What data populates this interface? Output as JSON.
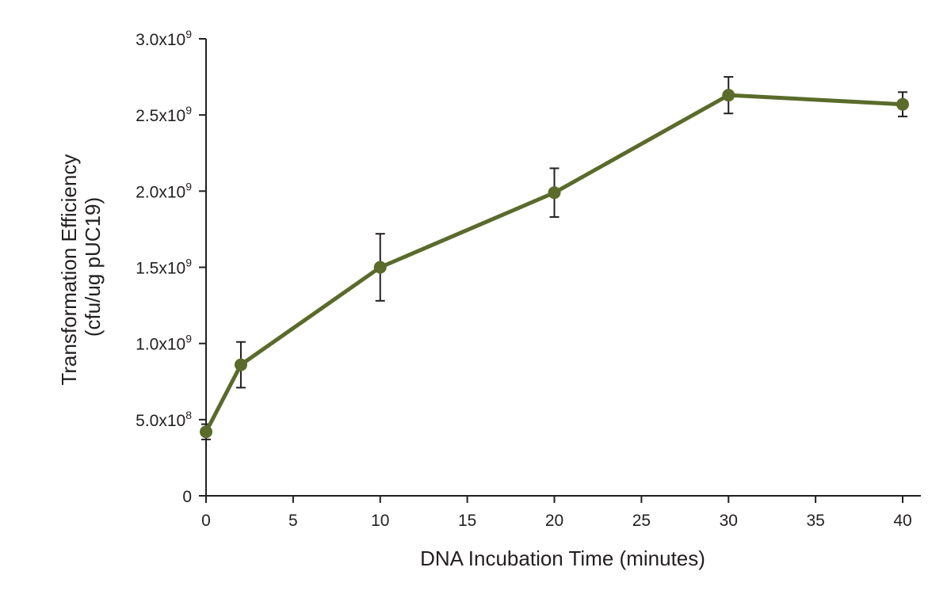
{
  "chart_data": {
    "type": "line",
    "title": "",
    "xlabel": "DNA Incubation Time (minutes)",
    "ylabel": [
      "Transformation Efficiency",
      "(cfu/ug pUC19)"
    ],
    "xlim": [
      0,
      41
    ],
    "ylim": [
      0,
      3000000000
    ],
    "x_ticks": [
      0,
      5,
      10,
      15,
      20,
      25,
      30,
      35,
      40
    ],
    "y_ticks": [
      {
        "value": 0,
        "base": "0",
        "exp": ""
      },
      {
        "value": 500000000,
        "base": "5.0x10",
        "exp": "8"
      },
      {
        "value": 1000000000,
        "base": "1.0x10",
        "exp": "9"
      },
      {
        "value": 1500000000,
        "base": "1.5x10",
        "exp": "9"
      },
      {
        "value": 2000000000,
        "base": "2.0x10",
        "exp": "9"
      },
      {
        "value": 2500000000,
        "base": "2.5x10",
        "exp": "9"
      },
      {
        "value": 3000000000,
        "base": "3.0x10",
        "exp": "9"
      }
    ],
    "grid": false,
    "legend": "none",
    "series": [
      {
        "color": "#5a6b2a",
        "points": [
          {
            "x": 0,
            "y": 420000000,
            "err": 50000000
          },
          {
            "x": 2,
            "y": 860000000,
            "err": 150000000
          },
          {
            "x": 10,
            "y": 1500000000,
            "err": 220000000
          },
          {
            "x": 20,
            "y": 1990000000,
            "err": 160000000
          },
          {
            "x": 30,
            "y": 2630000000,
            "err": 120000000
          },
          {
            "x": 40,
            "y": 2570000000,
            "err": 80000000
          }
        ]
      }
    ]
  }
}
